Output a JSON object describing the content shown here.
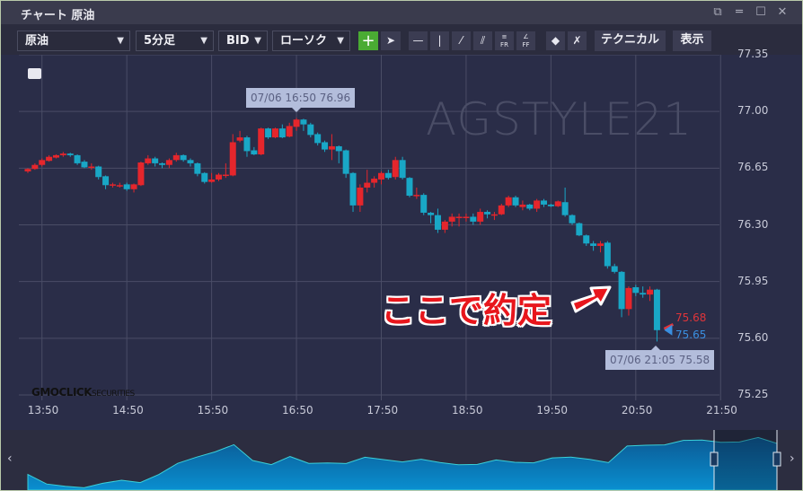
{
  "window": {
    "title": "チャート 原油",
    "icons": [
      "restore-icon",
      "minimize-icon",
      "maximize-icon",
      "close-icon"
    ]
  },
  "toolbar": {
    "symbol": "原油",
    "timeframe": "5分足",
    "price_type": "BID",
    "chart_type": "ローソク",
    "crosshair_icon": "+",
    "tools": [
      "horizontal-line",
      "vertical-line",
      "trend-line",
      "parallel-lines",
      "fibonacci-retracement",
      "fibonacci-fan",
      "eraser",
      "delete-all"
    ],
    "fr_label": "FR",
    "ff_label": "FF",
    "technical_label": "テクニカル",
    "display_label": "表示"
  },
  "watermark": "AGSTYLE21",
  "logo": {
    "main": "GMOCLICK",
    "sub": "SECURITIES"
  },
  "annotation": "ここで約定",
  "tooltips": {
    "high": "07/06 16:50 76.96",
    "low": "07/06 21:05 75.58"
  },
  "current": {
    "ask": "75.68",
    "bid": "75.65",
    "ask_color": "#e0353a",
    "bid_color": "#3a8fe0"
  },
  "colors": {
    "up": "#e5262c",
    "down": "#19a7c6",
    "background": "#2a2d48",
    "grid": "#4a4d66"
  },
  "chart_data": {
    "type": "candlestick",
    "date": "07/06",
    "interval_minutes": 5,
    "ylim": [
      75.25,
      77.35
    ],
    "yticks": [
      "77.35",
      "77.00",
      "76.65",
      "76.30",
      "75.95",
      "75.60",
      "75.25"
    ],
    "xticks": [
      "13:50",
      "14:50",
      "15:50",
      "16:50",
      "17:50",
      "18:50",
      "19:50",
      "20:50",
      "21:50"
    ],
    "grid": true,
    "columns": [
      "time",
      "open",
      "high",
      "low",
      "close"
    ],
    "candles": [
      [
        "13:40",
        76.63,
        76.65,
        76.62,
        76.645
      ],
      [
        "13:45",
        76.645,
        76.68,
        76.64,
        76.67
      ],
      [
        "13:50",
        76.67,
        76.71,
        76.66,
        76.7
      ],
      [
        "13:55",
        76.695,
        76.73,
        76.69,
        76.72
      ],
      [
        "14:00",
        76.715,
        76.735,
        76.71,
        76.73
      ],
      [
        "14:05",
        76.73,
        76.75,
        76.72,
        76.74
      ],
      [
        "14:10",
        76.74,
        76.745,
        76.72,
        76.73
      ],
      [
        "14:15",
        76.73,
        76.735,
        76.67,
        76.68
      ],
      [
        "14:20",
        76.69,
        76.7,
        76.65,
        76.655
      ],
      [
        "14:25",
        76.655,
        76.68,
        76.64,
        76.66
      ],
      [
        "14:30",
        76.66,
        76.665,
        76.58,
        76.595
      ],
      [
        "14:35",
        76.6,
        76.605,
        76.52,
        76.545
      ],
      [
        "14:40",
        76.545,
        76.56,
        76.53,
        76.55
      ],
      [
        "14:45",
        76.545,
        76.56,
        76.53,
        76.545
      ],
      [
        "14:50",
        76.55,
        76.56,
        76.51,
        76.52
      ],
      [
        "14:55",
        76.52,
        76.555,
        76.5,
        76.55
      ],
      [
        "15:00",
        76.545,
        76.69,
        76.54,
        76.685
      ],
      [
        "15:05",
        76.68,
        76.73,
        76.67,
        76.71
      ],
      [
        "15:10",
        76.71,
        76.72,
        76.66,
        76.68
      ],
      [
        "15:15",
        76.68,
        76.685,
        76.65,
        76.67
      ],
      [
        "15:20",
        76.67,
        76.71,
        76.65,
        76.7
      ],
      [
        "15:25",
        76.7,
        76.745,
        76.69,
        76.73
      ],
      [
        "15:30",
        76.73,
        76.735,
        76.69,
        76.7
      ],
      [
        "15:35",
        76.7,
        76.71,
        76.66,
        76.68
      ],
      [
        "15:40",
        76.68,
        76.685,
        76.6,
        76.615
      ],
      [
        "15:45",
        76.62,
        76.625,
        76.555,
        76.565
      ],
      [
        "15:50",
        76.565,
        76.62,
        76.56,
        76.58
      ],
      [
        "15:55",
        76.58,
        76.62,
        76.57,
        76.61
      ],
      [
        "16:00",
        76.61,
        76.68,
        76.59,
        76.61
      ],
      [
        "16:05",
        76.605,
        76.86,
        76.6,
        76.81
      ],
      [
        "16:10",
        76.82,
        76.88,
        76.81,
        76.84
      ],
      [
        "16:15",
        76.84,
        76.85,
        76.72,
        76.755
      ],
      [
        "16:20",
        76.76,
        76.78,
        76.73,
        76.735
      ],
      [
        "16:25",
        76.735,
        76.9,
        76.73,
        76.895
      ],
      [
        "16:30",
        76.895,
        76.9,
        76.83,
        76.84
      ],
      [
        "16:35",
        76.84,
        76.9,
        76.835,
        76.895
      ],
      [
        "16:40",
        76.895,
        76.92,
        76.835,
        76.84
      ],
      [
        "16:45",
        76.845,
        76.93,
        76.84,
        76.91
      ],
      [
        "16:50",
        76.905,
        76.96,
        76.88,
        76.95
      ],
      [
        "16:55",
        76.95,
        76.955,
        76.88,
        76.92
      ],
      [
        "17:00",
        76.92,
        76.93,
        76.84,
        76.855
      ],
      [
        "17:05",
        76.86,
        76.87,
        76.79,
        76.805
      ],
      [
        "17:10",
        76.81,
        76.82,
        76.75,
        76.765
      ],
      [
        "17:15",
        76.765,
        76.86,
        76.7,
        76.785
      ],
      [
        "17:20",
        76.785,
        76.79,
        76.68,
        76.755
      ],
      [
        "17:25",
        76.76,
        76.765,
        76.59,
        76.615
      ],
      [
        "17:30",
        76.62,
        76.625,
        76.38,
        76.42
      ],
      [
        "17:35",
        76.42,
        76.55,
        76.38,
        76.53
      ],
      [
        "17:40",
        76.53,
        76.64,
        76.5,
        76.56
      ],
      [
        "17:45",
        76.56,
        76.6,
        76.53,
        76.585
      ],
      [
        "17:50",
        76.58,
        76.63,
        76.55,
        76.62
      ],
      [
        "17:55",
        76.62,
        76.64,
        76.58,
        76.59
      ],
      [
        "18:00",
        76.595,
        76.72,
        76.58,
        76.7
      ],
      [
        "18:05",
        76.7,
        76.72,
        76.58,
        76.59
      ],
      [
        "18:10",
        76.59,
        76.595,
        76.47,
        76.48
      ],
      [
        "18:15",
        76.48,
        76.53,
        76.46,
        76.485
      ],
      [
        "18:20",
        76.485,
        76.495,
        76.36,
        76.375
      ],
      [
        "18:25",
        76.375,
        76.38,
        76.31,
        76.36
      ],
      [
        "18:30",
        76.36,
        76.4,
        76.25,
        76.27
      ],
      [
        "18:35",
        76.27,
        76.33,
        76.25,
        76.32
      ],
      [
        "18:40",
        76.32,
        76.37,
        76.29,
        76.35
      ],
      [
        "18:45",
        76.35,
        76.37,
        76.29,
        76.35
      ],
      [
        "18:50",
        76.35,
        76.37,
        76.32,
        76.35
      ],
      [
        "18:55",
        76.35,
        76.37,
        76.3,
        76.32
      ],
      [
        "19:00",
        76.32,
        76.4,
        76.3,
        76.38
      ],
      [
        "19:05",
        76.38,
        76.39,
        76.34,
        76.365
      ],
      [
        "19:10",
        76.365,
        76.38,
        76.33,
        76.365
      ],
      [
        "19:15",
        76.365,
        76.43,
        76.36,
        76.42
      ],
      [
        "19:20",
        76.42,
        76.48,
        76.41,
        76.47
      ],
      [
        "19:25",
        76.47,
        76.48,
        76.41,
        76.42
      ],
      [
        "19:30",
        76.41,
        76.45,
        76.39,
        76.425
      ],
      [
        "19:35",
        76.425,
        76.43,
        76.39,
        76.4
      ],
      [
        "19:40",
        76.4,
        76.46,
        76.38,
        76.45
      ],
      [
        "19:45",
        76.45,
        76.46,
        76.41,
        76.425
      ],
      [
        "19:50",
        76.425,
        76.43,
        76.41,
        76.415
      ],
      [
        "19:55",
        76.415,
        76.45,
        76.41,
        76.445
      ],
      [
        "20:00",
        76.44,
        76.53,
        76.35,
        76.36
      ],
      [
        "20:05",
        76.36,
        76.365,
        76.3,
        76.31
      ],
      [
        "20:10",
        76.31,
        76.315,
        76.23,
        76.235
      ],
      [
        "20:15",
        76.235,
        76.24,
        76.17,
        76.185
      ],
      [
        "20:20",
        76.185,
        76.2,
        76.14,
        76.17
      ],
      [
        "20:25",
        76.17,
        76.2,
        76.13,
        76.185
      ],
      [
        "20:30",
        76.19,
        76.2,
        76.03,
        76.045
      ],
      [
        "20:35",
        76.045,
        76.06,
        76.0,
        76.01
      ],
      [
        "20:40",
        76.01,
        76.015,
        75.73,
        75.78
      ],
      [
        "20:45",
        75.78,
        75.92,
        75.74,
        75.91
      ],
      [
        "20:50",
        75.915,
        75.93,
        75.86,
        75.88
      ],
      [
        "20:55",
        75.88,
        75.92,
        75.85,
        75.87
      ],
      [
        "21:00",
        75.87,
        75.92,
        75.83,
        75.9
      ],
      [
        "21:05",
        75.9,
        75.905,
        75.58,
        75.65
      ]
    ],
    "navigator_levels": [
      0.3,
      0.12,
      0.1,
      0.1,
      0.12,
      0.22,
      0.2,
      0.3,
      0.58,
      0.75,
      0.9,
      0.98,
      0.66,
      0.6,
      0.7,
      0.58,
      0.62,
      0.64,
      0.7,
      0.68,
      0.66,
      0.64,
      0.6,
      0.58,
      0.62,
      0.64,
      0.62,
      0.64,
      0.67,
      0.72,
      0.7,
      0.66,
      0.95,
      1.0,
      1.04,
      1.06,
      1.1,
      1.08,
      1.12,
      1.14,
      1.04
    ]
  }
}
